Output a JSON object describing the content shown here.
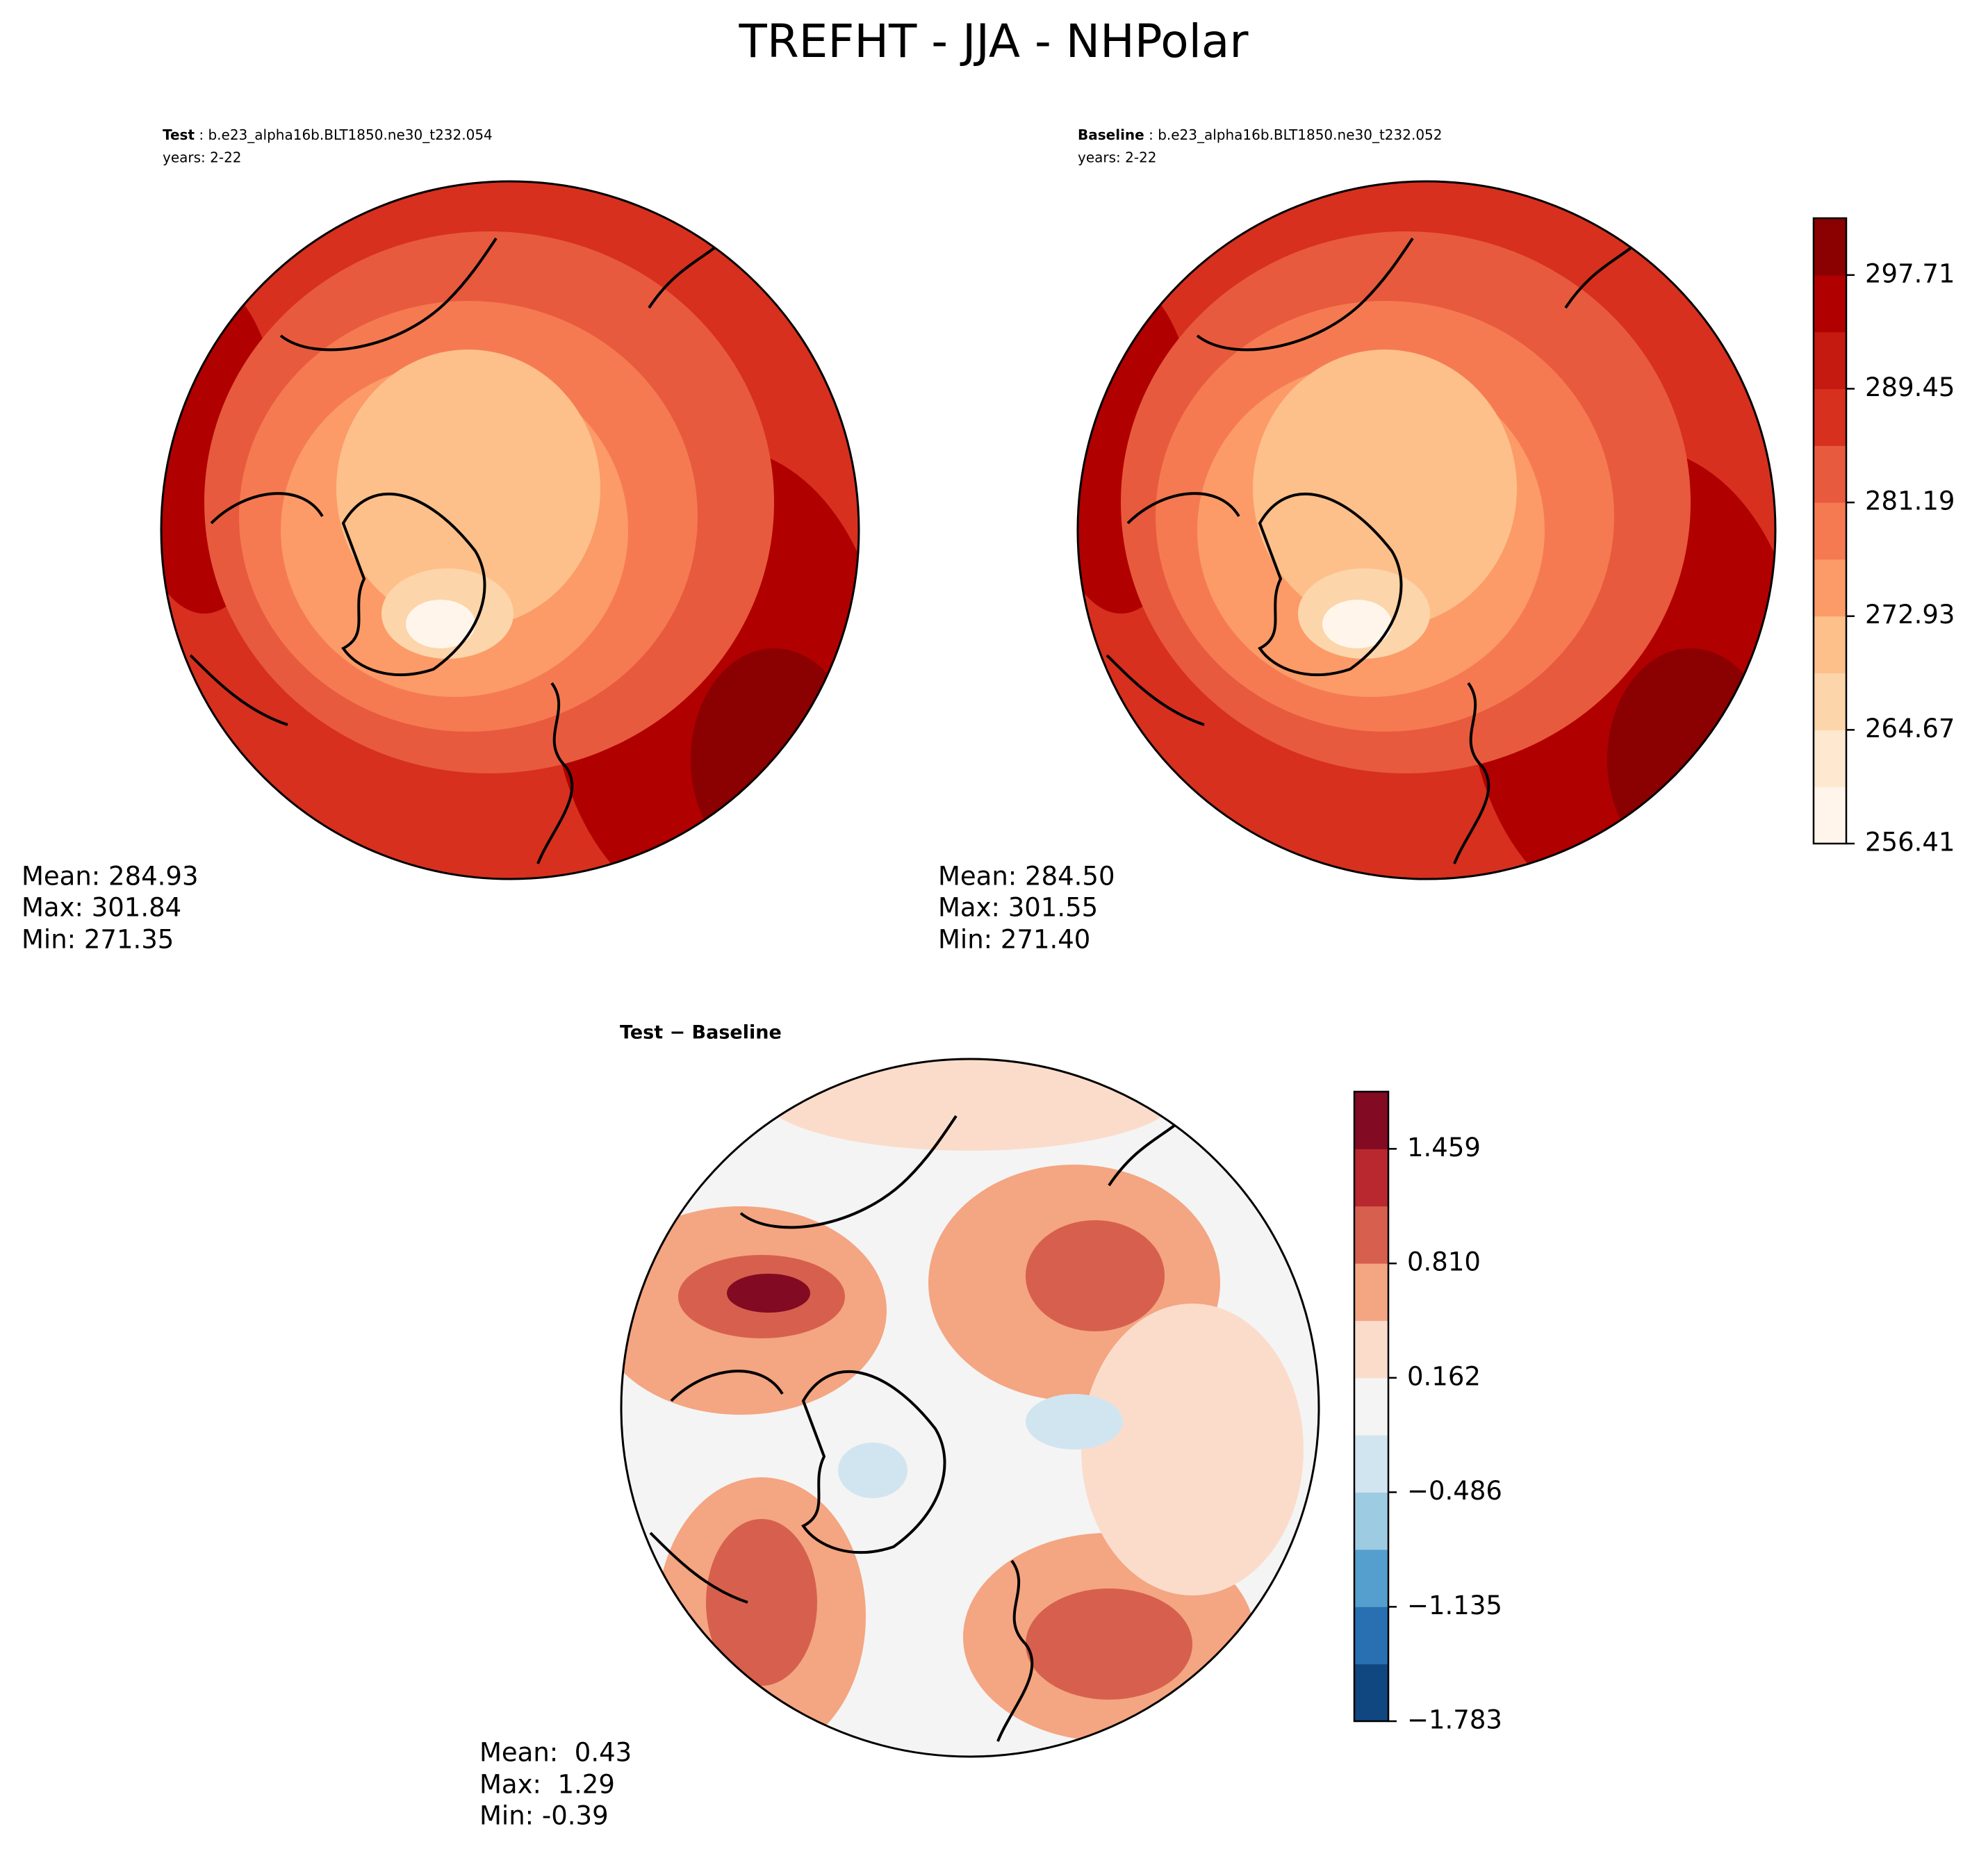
{
  "title": "TREFHT - JJA - NHPolar",
  "panels": [
    {
      "label": "Test",
      "case": " : b.e23_alpha16b.BLT1850.ne30_t232.054",
      "years": "years: 2-22",
      "stats": [
        "Mean: 284.93",
        "Max: 301.84",
        "Min: 271.35"
      ]
    },
    {
      "label": "Baseline",
      "case": " : b.e23_alpha16b.BLT1850.ne30_t232.052",
      "years": "years: 2-22",
      "stats": [
        "Mean: 284.50",
        "Max: 301.55",
        "Min: 271.40"
      ]
    },
    {
      "label": "Test − Baseline",
      "stats": [
        "Mean:  0.43",
        "Max:  1.29",
        "Min: -0.39"
      ]
    }
  ],
  "colorbars": [
    {
      "lim": [
        256.41,
        301.84
      ],
      "ticks": [
        256.41,
        264.67,
        272.93,
        281.19,
        289.45,
        297.71
      ],
      "colors": [
        "#fff5eb",
        "#fee8cf",
        "#fdd5aa",
        "#fdc08a",
        "#fc9b68",
        "#f57a52",
        "#e85a3d",
        "#d7301f",
        "#c41a10",
        "#b10000",
        "#8b0000"
      ]
    },
    {
      "lim": [
        -1.783,
        1.783
      ],
      "ticks": [
        {
          "value": -1.783,
          "label": "−1.783"
        },
        {
          "value": -1.135,
          "label": "−1.135"
        },
        {
          "value": -0.486,
          "label": "−0.486"
        },
        0.162,
        {
          "value": 0.81,
          "label": "0.810"
        },
        1.459
      ],
      "colors": [
        "#114781",
        "#2870b1",
        "#549fcd",
        "#9dcbe2",
        "#d1e5f0",
        "#f4f4f4",
        "#fbdccb",
        "#f4a581",
        "#d6604d",
        "#b8282e",
        "#820a22"
      ]
    }
  ]
}
